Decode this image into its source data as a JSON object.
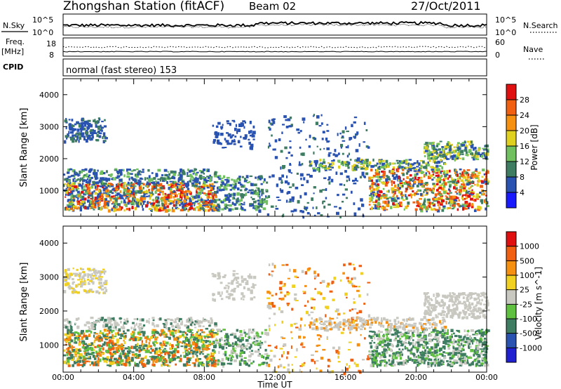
{
  "header": {
    "station": "Zhongshan Station (fitACF)",
    "beam": "Beam 02",
    "date": "27/Oct/2011"
  },
  "top_panels": {
    "nsky_label": "N.Sky",
    "nsearch_label": "N.Search",
    "nsky_ticks": [
      "10^5",
      "10^0"
    ],
    "nsearch_ticks": [
      "10^5",
      "10^0"
    ],
    "freq_label": "Freq.",
    "freq_unit": "[MHz]",
    "freq_ticks": [
      "18",
      "8"
    ],
    "nave_label": "Nave",
    "nave_ticks": [
      "60",
      "0"
    ],
    "cpid_label": "CPID",
    "cpid_text": "normal (fast stereo) 153"
  },
  "chart_data": [
    {
      "type": "heatmap",
      "ylabel": "Slant Range [km]",
      "y_ticks": [
        "4000",
        "3000",
        "2000",
        "1000"
      ],
      "ylim": [
        200,
        4500
      ],
      "xlabel": "Time UT",
      "x_ticks": [
        "00:00",
        "04:00",
        "08:00",
        "12:00",
        "16:00",
        "20:00",
        "00:00"
      ],
      "colorbar": {
        "label": "Power [dB]",
        "tick_labels": [
          "28",
          "24",
          "20",
          "16",
          "12",
          "8",
          "4"
        ],
        "colors": [
          "#1a1aff",
          "#2a52b0",
          "#3f7d62",
          "#70c060",
          "#e0d020",
          "#f59010",
          "#f06010",
          "#e01010"
        ]
      }
    },
    {
      "type": "heatmap",
      "ylabel": "Slant Range [km]",
      "y_ticks": [
        "4000",
        "3000",
        "2000",
        "1000"
      ],
      "ylim": [
        200,
        4500
      ],
      "xlabel": "Time UT",
      "x_ticks": [
        "00:00",
        "04:00",
        "08:00",
        "12:00",
        "16:00",
        "20:00",
        "00:00"
      ],
      "colorbar": {
        "label": "Velocity [m s^-1]",
        "tick_labels": [
          "1000",
          "500",
          "100",
          "25",
          "-25",
          "-100",
          "-500",
          "-1000"
        ],
        "colors": [
          "#2020d0",
          "#2a52b0",
          "#3f7d62",
          "#60c040",
          "#c8c8c0",
          "#f0d020",
          "#f59010",
          "#f06010",
          "#e01010"
        ]
      }
    }
  ]
}
